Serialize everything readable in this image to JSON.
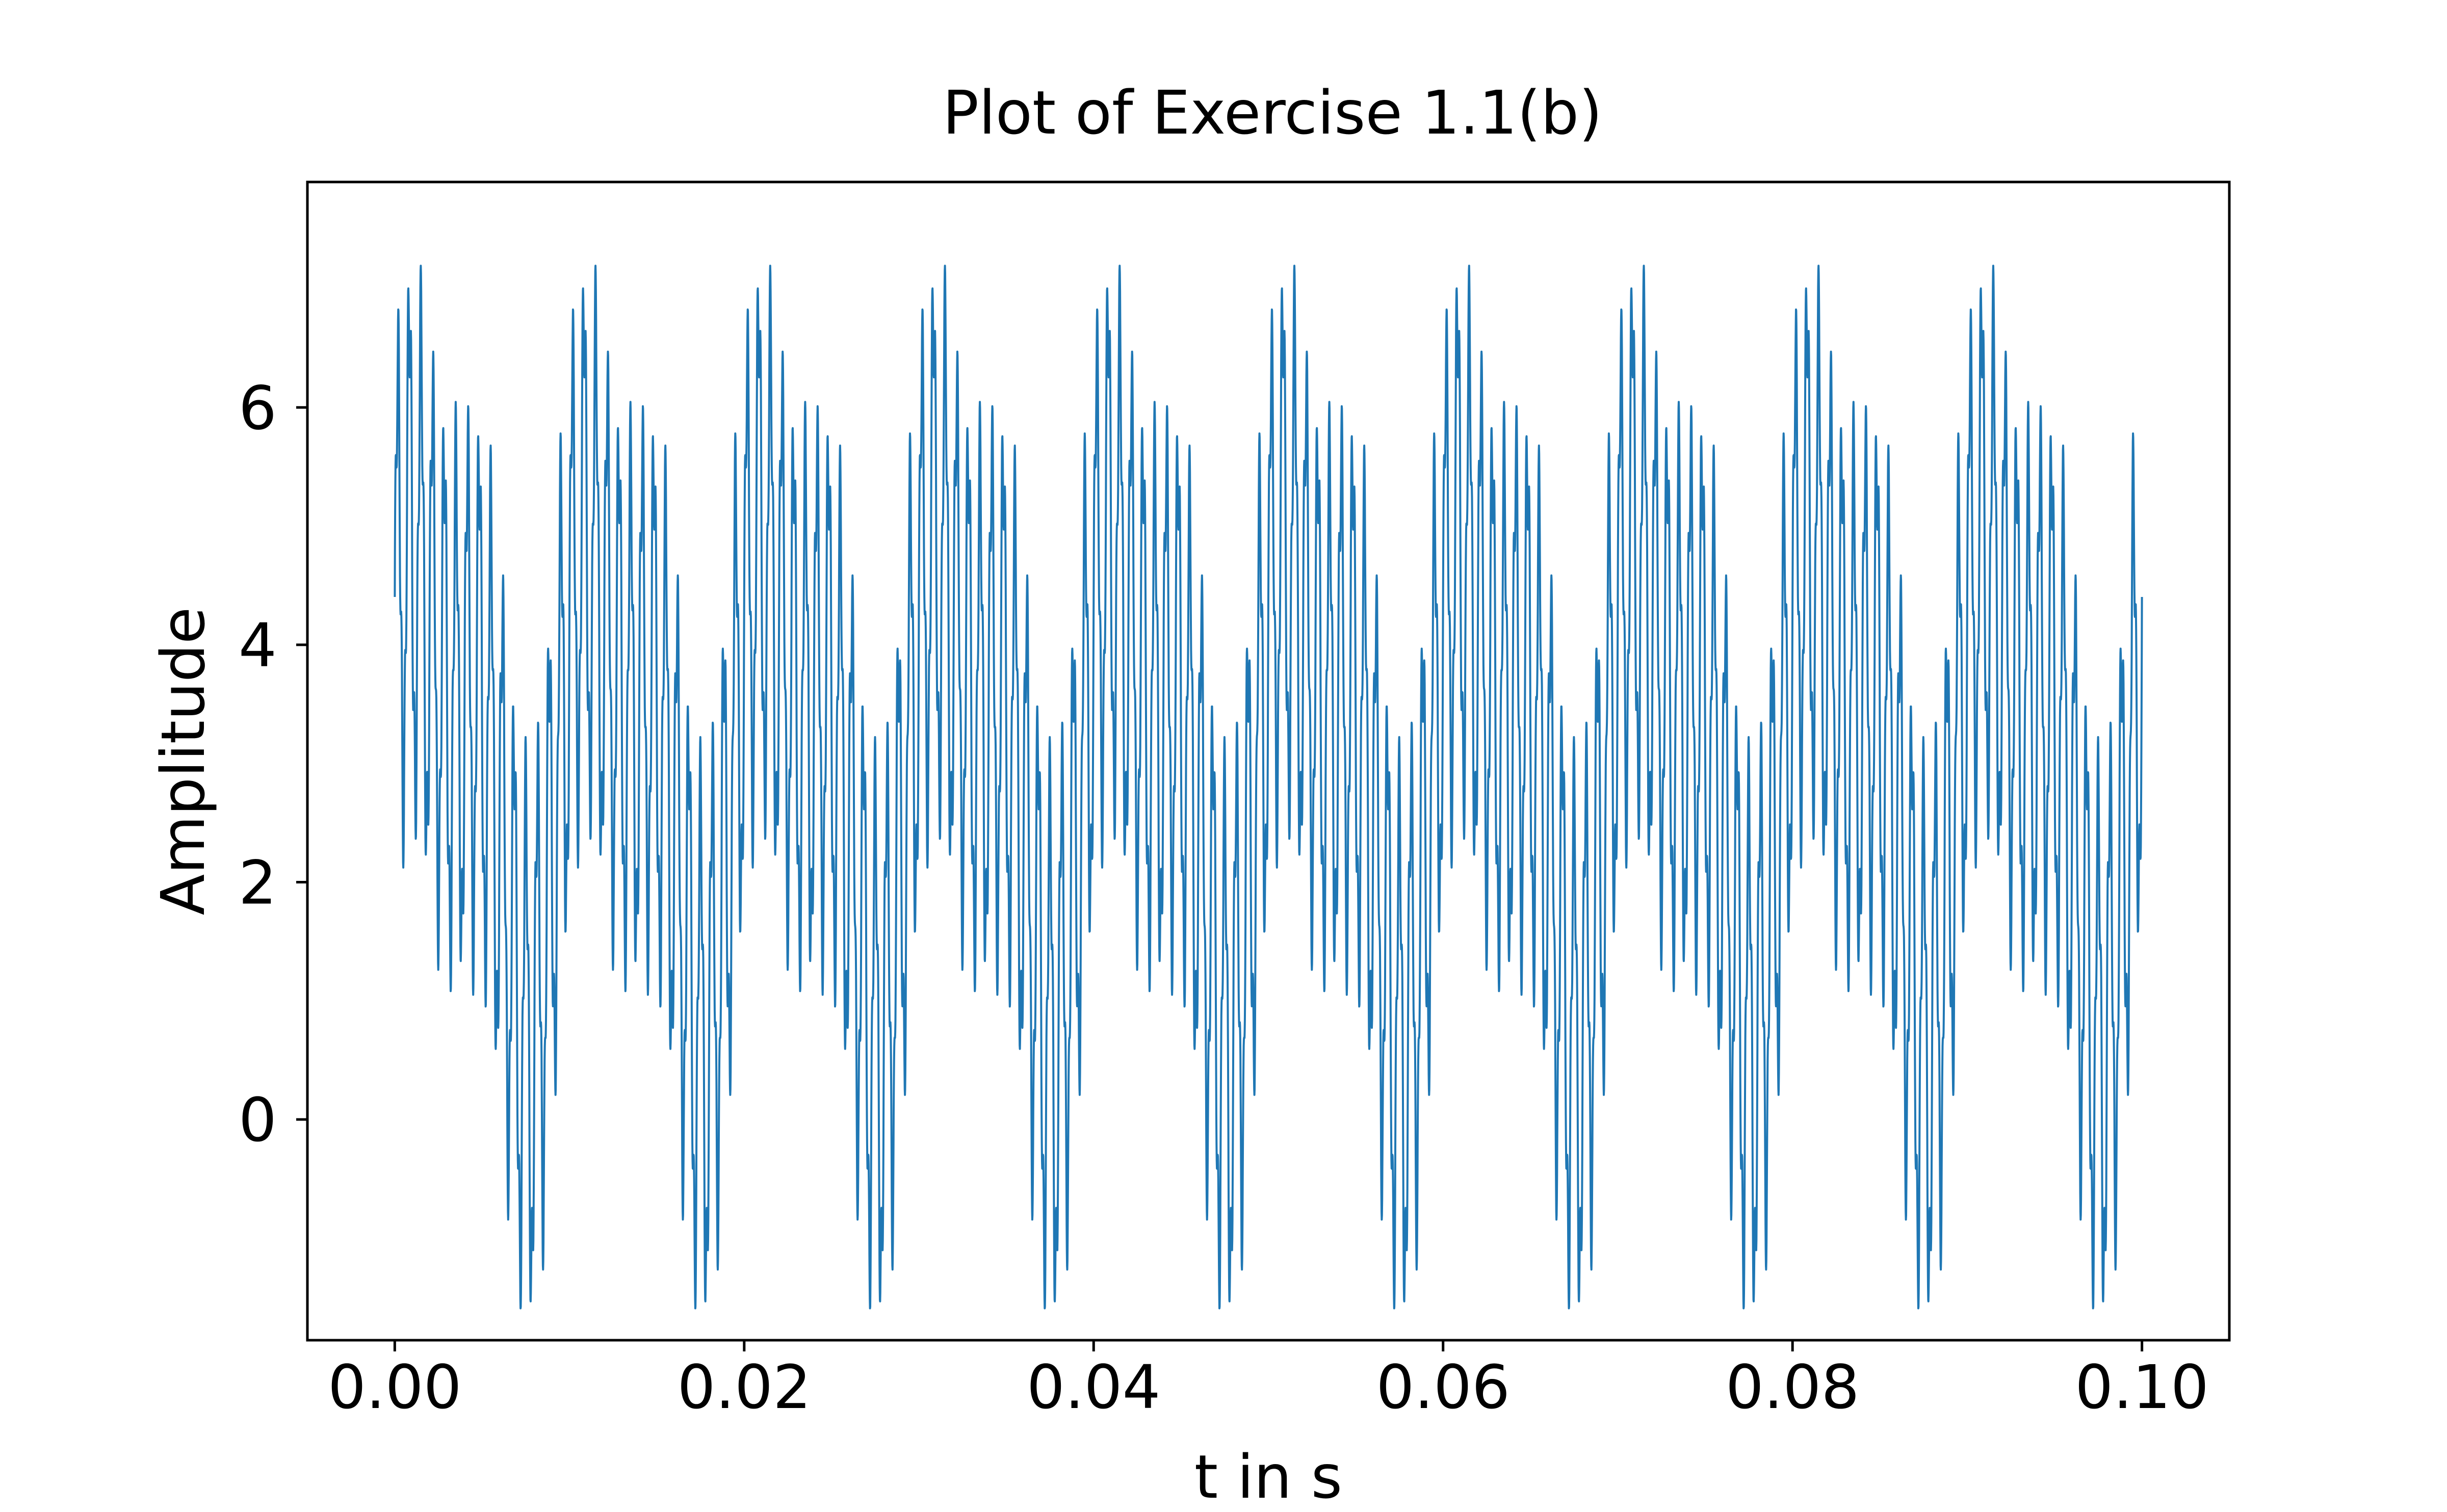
{
  "chart_data": {
    "type": "line",
    "title": "Plot of Exercise 1.1(b)",
    "xlabel": "t in s",
    "ylabel": "Amplitude",
    "xlim": [
      -0.005,
      0.105
    ],
    "ylim": [
      -1.86,
      7.9
    ],
    "x_ticks": [
      0.0,
      0.02,
      0.04,
      0.06,
      0.08,
      0.1
    ],
    "x_tick_labels": [
      "0.00",
      "0.02",
      "0.04",
      "0.06",
      "0.08",
      "0.10"
    ],
    "y_ticks": [
      0,
      2,
      4,
      6
    ],
    "y_tick_labels": [
      "0",
      "2",
      "4",
      "6"
    ],
    "grid": false,
    "series": [
      {
        "color": "#1f77b4",
        "x_range": [
          0.0,
          0.1
        ],
        "y_max": 7.45,
        "y_min": -1.4,
        "period": 0.01,
        "samples": [
          {
            "x": 0.0,
            "y": 1.55
          },
          {
            "x": 0.002,
            "y": 7.45
          },
          {
            "x": 0.0078,
            "y": -1.4
          },
          {
            "x": 0.012,
            "y": 7.45
          },
          {
            "x": 0.0178,
            "y": -1.4
          },
          {
            "x": 0.022,
            "y": 7.45
          },
          {
            "x": 0.0278,
            "y": -1.4
          },
          {
            "x": 0.032,
            "y": 7.45
          },
          {
            "x": 0.0378,
            "y": -1.4
          },
          {
            "x": 0.042,
            "y": 7.45
          },
          {
            "x": 0.0478,
            "y": -1.4
          },
          {
            "x": 0.052,
            "y": 7.45
          },
          {
            "x": 0.0578,
            "y": -1.4
          },
          {
            "x": 0.062,
            "y": 7.45
          },
          {
            "x": 0.0678,
            "y": -1.4
          },
          {
            "x": 0.072,
            "y": 7.45
          },
          {
            "x": 0.0778,
            "y": -1.4
          },
          {
            "x": 0.082,
            "y": 7.45
          },
          {
            "x": 0.0878,
            "y": -1.4
          },
          {
            "x": 0.092,
            "y": 7.45
          },
          {
            "x": 0.0978,
            "y": -1.4
          },
          {
            "x": 0.1,
            "y": 4.5
          }
        ]
      }
    ]
  }
}
